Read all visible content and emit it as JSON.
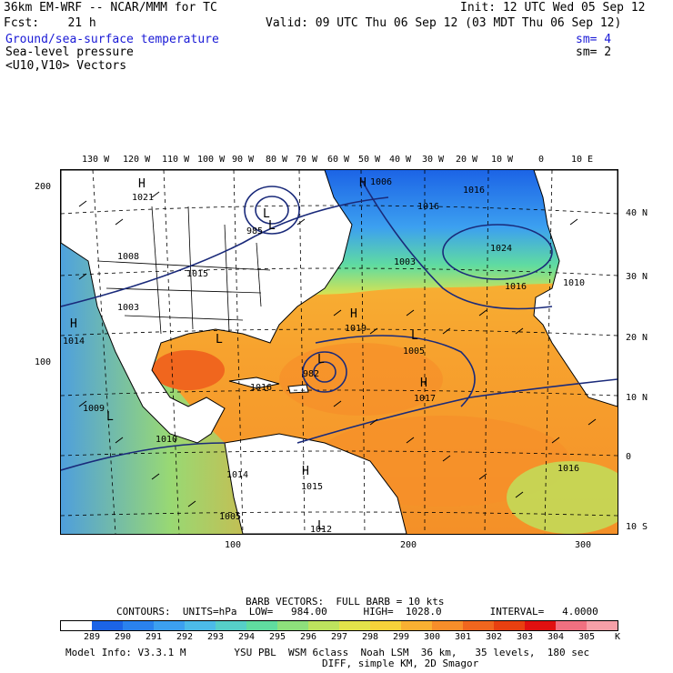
{
  "header": {
    "model_title": "36km EM-WRF -- NCAR/MMM for TC",
    "init": "Init: 12 UTC Wed 05 Sep 12",
    "fcst": "Fcst:    21 h",
    "valid": "Valid: 09 UTC Thu 06 Sep 12 (03 MDT Thu 06 Sep 12)",
    "fields": [
      {
        "label": "Ground/sea-surface temperature",
        "sm": "sm= 4",
        "color": "#1a1ad6"
      },
      {
        "label": "Sea-level pressure",
        "sm": "sm= 2",
        "color": "#1a1ad6"
      },
      {
        "label": "<U10,V10> Vectors",
        "sm": "",
        "color": "#000000"
      }
    ]
  },
  "map": {
    "lon_labels": [
      "130 W",
      "120 W",
      "110 W",
      "100 W",
      "90 W",
      "80 W",
      "70 W",
      "60 W",
      "50 W",
      "40 W",
      "30 W",
      "20 W",
      "10 W",
      "0",
      "10 E"
    ],
    "lat_labels": [
      "40 N",
      "30 N",
      "20 N",
      "10 N",
      "0",
      "10 S"
    ],
    "y_axis_labels": [
      "200",
      "100"
    ],
    "x_axis_labels": [
      "100",
      "200",
      "300"
    ],
    "pressure_labels": [
      "1021",
      "985",
      "1008",
      "1015",
      "1003",
      "1014",
      "1009",
      "1010",
      "1016",
      "1014",
      "1005",
      "1015",
      "1012",
      "1019",
      "982",
      "1005",
      "1017",
      "1016",
      "1016",
      "1003",
      "1024",
      "1016",
      "1010",
      "1006",
      "1016"
    ],
    "center_labels": [
      "H",
      "L",
      "H",
      "L",
      "H",
      "H",
      "L",
      "L",
      "H",
      "L",
      "L",
      "H",
      "L"
    ]
  },
  "footer": {
    "barb_vectors": "BARB VECTORS:  FULL BARB = 10 kts",
    "contours": "CONTOURS:  UNITS=hPa  LOW=   984.00      HIGH=  1028.0        INTERVAL=   4.0000",
    "colorbar_ticks": [
      "289",
      "290",
      "291",
      "292",
      "293",
      "294",
      "295",
      "296",
      "297",
      "298",
      "299",
      "300",
      "301",
      "302",
      "303",
      "304",
      "305"
    ],
    "units": "K",
    "colorbar_colors": [
      "#ffffff",
      "#1c64e6",
      "#2a82ee",
      "#3ca0f0",
      "#4cbbe8",
      "#56cfc8",
      "#60dca0",
      "#8ee07c",
      "#bde35e",
      "#e3e34a",
      "#f7d23a",
      "#f9b032",
      "#f78e2a",
      "#f0661e",
      "#e84010",
      "#e01010",
      "#f07080",
      "#f6a0a8"
    ],
    "model_info": "Model Info: V3.3.1 M        YSU PBL  WSM 6class  Noah LSM  36 km,   35 levels,  180 sec",
    "model_info2": "DIFF, simple KM, 2D Smagor"
  }
}
